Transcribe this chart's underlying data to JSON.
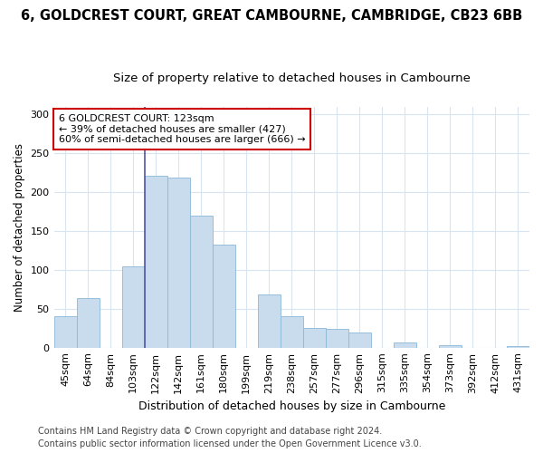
{
  "title1": "6, GOLDCREST COURT, GREAT CAMBOURNE, CAMBRIDGE, CB23 6BB",
  "title2": "Size of property relative to detached houses in Cambourne",
  "xlabel": "Distribution of detached houses by size in Cambourne",
  "ylabel": "Number of detached properties",
  "categories": [
    "45sqm",
    "64sqm",
    "84sqm",
    "103sqm",
    "122sqm",
    "142sqm",
    "161sqm",
    "180sqm",
    "199sqm",
    "219sqm",
    "238sqm",
    "257sqm",
    "277sqm",
    "296sqm",
    "315sqm",
    "335sqm",
    "354sqm",
    "373sqm",
    "392sqm",
    "412sqm",
    "431sqm"
  ],
  "values": [
    40,
    64,
    0,
    105,
    221,
    219,
    170,
    133,
    0,
    68,
    40,
    25,
    24,
    20,
    0,
    7,
    0,
    3,
    0,
    0,
    2
  ],
  "bar_color": "#c8dced",
  "bar_edge_color": "#8ab8d8",
  "vline_x_index": 4,
  "vline_color": "#5555aa",
  "annotation_line1": "6 GOLDCREST COURT: 123sqm",
  "annotation_line2": "← 39% of detached houses are smaller (427)",
  "annotation_line3": "60% of semi-detached houses are larger (666) →",
  "annotation_box_color": "#ffffff",
  "annotation_box_edge": "#cc0000",
  "ylim": [
    0,
    310
  ],
  "yticks": [
    0,
    50,
    100,
    150,
    200,
    250,
    300
  ],
  "footer1": "Contains HM Land Registry data © Crown copyright and database right 2024.",
  "footer2": "Contains public sector information licensed under the Open Government Licence v3.0.",
  "bg_color": "#ffffff",
  "plot_bg_color": "#ffffff",
  "grid_color": "#d8e4f0",
  "title1_fontsize": 10.5,
  "title2_fontsize": 9.5,
  "xlabel_fontsize": 9,
  "ylabel_fontsize": 8.5,
  "tick_fontsize": 8,
  "annotation_fontsize": 8,
  "footer_fontsize": 7
}
